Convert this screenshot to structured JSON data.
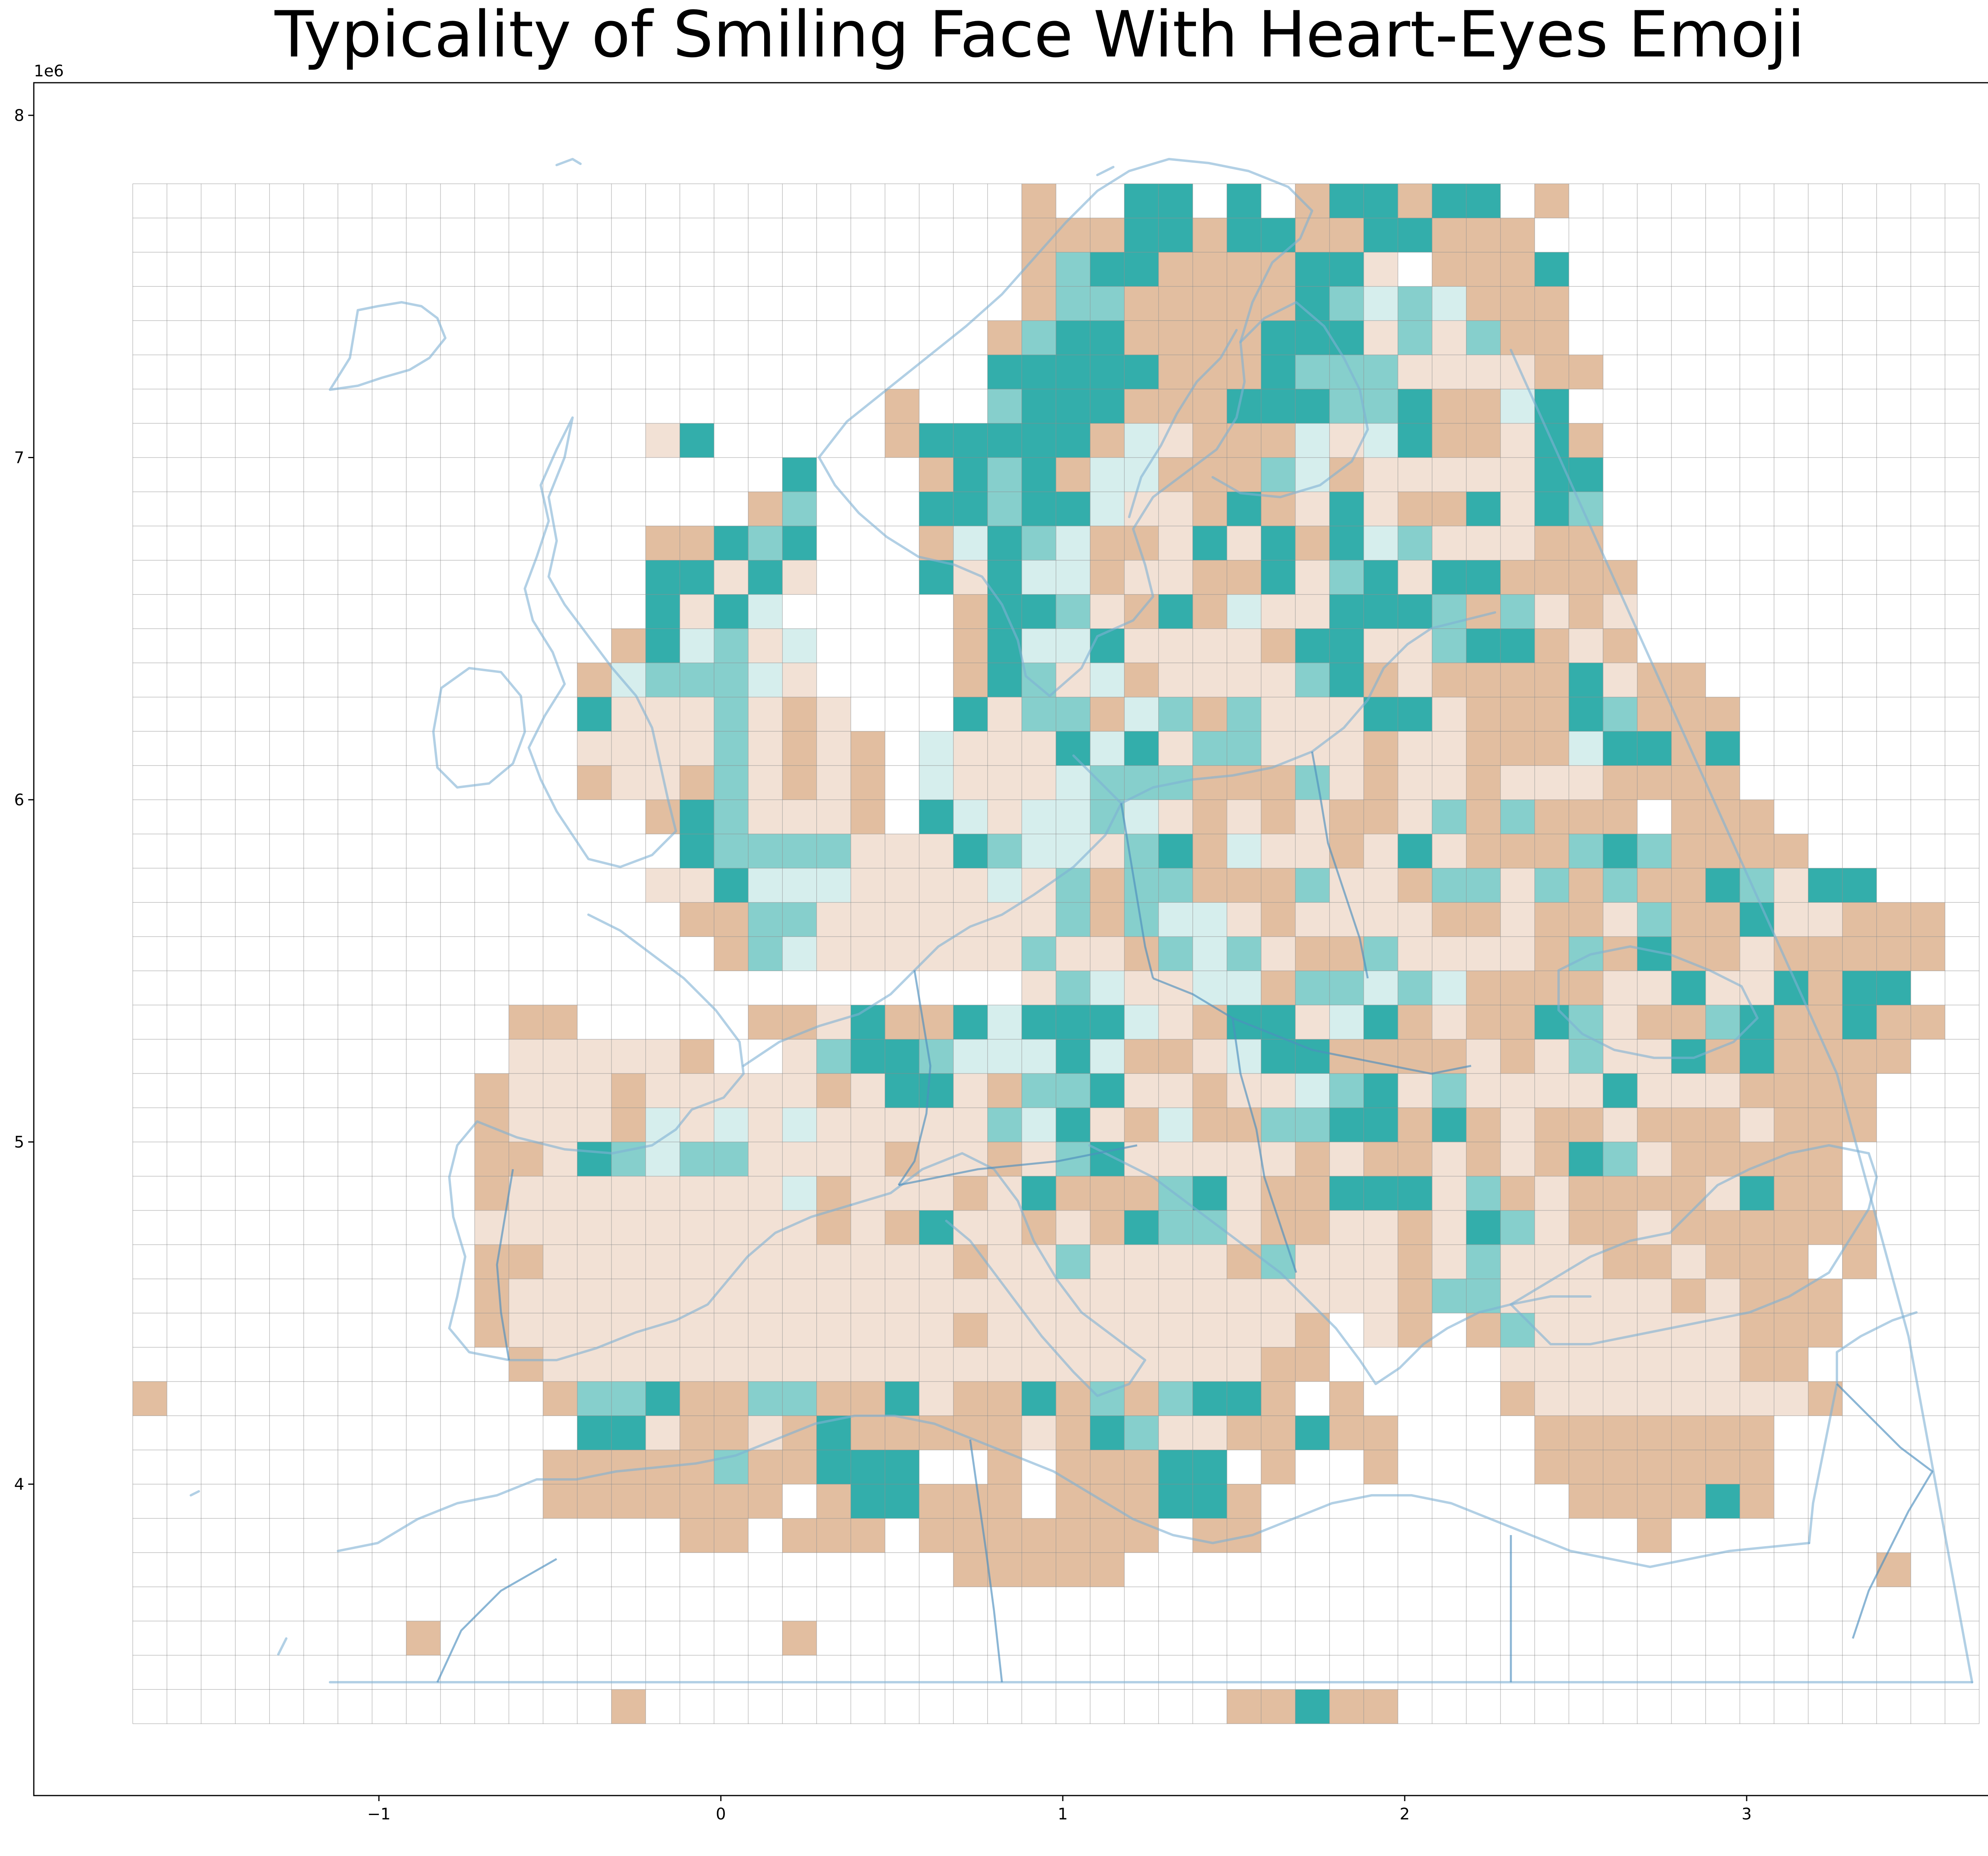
{
  "title": "Typicality of Smiling Face With Heart-Eyes Emoji",
  "axes": {
    "x_offset_label": "1e6",
    "y_offset_label": "1e6",
    "x_ticks": [
      {
        "value": -1,
        "label": "−1"
      },
      {
        "value": 0,
        "label": "0"
      },
      {
        "value": 1,
        "label": "1"
      },
      {
        "value": 2,
        "label": "2"
      },
      {
        "value": 3,
        "label": "3"
      }
    ],
    "y_ticks": [
      {
        "value": 4,
        "label": "4"
      },
      {
        "value": 5,
        "label": "5"
      },
      {
        "value": 6,
        "label": "6"
      },
      {
        "value": 7,
        "label": "7"
      },
      {
        "value": 8,
        "label": "8"
      }
    ]
  },
  "colors": {
    "teal_strong": "#33aeab",
    "teal_mid": "#86cfcc",
    "teal_light": "#d6eeed",
    "tan_strong": "#e2bea0",
    "tan_light": "#f2e1d5",
    "neutral": "#fdfdfd",
    "grid": "#8a8a8a"
  },
  "chart_data": {
    "type": "heatmap",
    "title": "Typicality of Smiling Face With Heart-Eyes Emoji",
    "xlabel": "",
    "ylabel": "",
    "units_note": "coordinates in millions (1e6)",
    "xlim": [
      -1.0,
      3.5
    ],
    "ylim": [
      3.2,
      8.1
    ],
    "grid": {
      "x0": -1.72,
      "y_top": 7.8,
      "cell_size": 0.1,
      "cols": 54,
      "rows": 45
    },
    "scale": "diverging: t = teal (above typical), b = tan (below typical); 1 light, 2 medium, 3 strong; . = no data",
    "cells": [
      "..........................b..tt.t.bttbtt.b............",
      "..........................bbbttbttbbttbbb.............",
      "..........................btttbbbbttb.bbbt............",
      "..........................bttbbbbbtttttbbb............",
      ".........................btttbbbbtttbtbtbb.............",
      ".........................tttttbbbttttbbbbbb............",
      "......................b..ttttbbbttttttbbtt.............",
      "...............bt.....btttttbtbbbbtbttbbbtb............",
      "...................t...btttbttbbbttbbbbbbtt............",
      "..................bt...ttttttbbbtbbtbbbtbtt............",
      "...............bbttt...bttttbbbtbtbtttbbbbb............",
      "...............ttbtb...tbtttbbbbbtbttbttbbbb...........",
      "...............tbtt.....btttbbtbtbbttttbtbbb...........",
      "..............btttbt....bttttbbbbbttbbtttbbb...........",
      ".............btttttb....bttbtbbbbbttbbbbbbtbbb.........",
      ".............tbbbtbbb...tbttbttbtbbbttbbbbttbbb........",
      ".............bbbbtbbbb.tbbbtttbttbbbbbbbbbtttbt........",
      ".............bbbbtbbbb.tbbbttttbbbtbbbbbbbbbbbb........",
      "...............bttbbbb.ttbttttbbbbbbbbtbtbbb.bbb.......",
      "................tttttbbbttttbttbtbbbbtbbbbtttbbbb......",
      "...............bbttttbbbbtbtbttbbbtbbbttbtbtbbttbtt....",
      "................bbttbbbbbbbtbtttbbbbbbbbbbbbtbbtbbbbb..",
      ".................bttbbbbbbtbbbtttbbbtbbbbbtbtbbbbbbbb..",
      "..........................bttbbttbtttttbbbbbbtbbtbtt...",
      "...........bb.....bbbtbbttttttbbttbttbbbbttbbbttbbtbb..",
      "...........bbbbbb..btttttttttbbbtttbbbbbbbtbbtbtbbbb...",
      "..........bbbbbbbbbbbbttbbtttbbbbbtttbtbbbbtbbbbbbb....",
      "..........bbbbbtbtbtbbbbbtttbbtbbttttbtbbbbbbbbbbbb....",
      "..........bbbtttttbbbbbbbbbttbbbbbbbbbbbbbttbbbbbb.....",
      "..........bbbbbbbbbtbbbbbbtbbbttbbbtttbtbbbbbbbtbb.....",
      "..........bbbbbbbbbbbbbtbbbbbtttbbbbbbbttbbbbbbbbbb....",
      "..........bbbbbbbbbbbbbbbbbtbbbbbtbbbbbtbbbbbbbbb.b....",
      "..........bbbbbbbbbbbbbbbbbbbbbbbbbbbbttbbbbbbbbbb.....",
      "..........bbbbbbbbbbbbbbbbbbbbbbbbb.bb.btbbbbbbbbb.....",
      "...........bbbbbbbbbbbbbbbbbbbbbbbb.....bbbbbbbbb......",
      "b...........btttbbttbbtbbbtbtbtttb.b....bbbbbbbbbb.....",
      ".............ttbbbbbtbbbbbbbttbbbbtbb....bbbbbbb.......",
      "............bbbbbtbbttt..b.bbbtt.b..b....bbbbbbb.......",
      "............bbbbbbb.bttbbb.bbbttb.........bbbbtb......",
      "................bb.bbb.bbbbbbb.bb...........b..........",
      "........................bbbbb......................b...",
      ".......................................................",
      "........b..........b...................................",
      ".......................................................",
      "..............b.................bbtbb.................."
    ],
    "intensity": [
      "..........................3..33.3.33.33.3............",
      "..........................3333333333333333.............",
      "..........................323333333322333.............",
      "..........................3223333332121333............",
      ".........................323333333331212333............",
      ".........................3333333332221212333...........",
      "......................3..2333333333223331............",
      "...............23.....33333331133312133323............",
      "...................3...332331133321311122333............",
      "..................32...33233111333232333232............",
      "...............33323...3132133232333121113............",
      "...............33131...3131131133312313333...........",
      "...............313123.....3223331213332322313...........",
      "..............3312212....3113212233321233313...........",
      ".............31222123....32113112123313333323.........",
      ".............32222232...3122312322223313333233........",
      ".............22222131.2111231322222232233313333........",
      ".............32232232.2111112223332232232223........",
      "...............332121.13121121131323322323.333.......",
      "................322221113211123312232323332323......",
      "...............2231112121112322333222322223233322....",
      "................3322221111123211131222332332233322..",
      ".................3211222122113212233222123233332..",
      "..........................2212211322121333312322...",
      "...........33.....3323333133312333213323332233233..",
      "...........22222..2223321113133113333332322223...",
      "..........3222322222323313223223211232222223222....",
      "..........32223121211211121313133223333323323332....",
      "..........3323212222223123123221113233232332233.....",
      "..........3222222221322132333323133333223233332.....",
      "..........22222222223233223133222332232322332333....",
      "..........3322222222222232222222322223222223.2....",
      "..........3222222222222222222222222223222222232.....",
      "..........322222222222223222222222.22.232222222.....",
      "...........3222222222222222222222.....222222222......",
      "3...........3223332233323333232333.3....3222222223.....",
      ".............3323323333333233222333.3....3333333.......",
      "............333332333..3.333333.3..3....3333333.......",
      "............3333333.33333.33333.........333333......",
      "................33.333.3333333.33...........3..........",
      "........................33333......................3...",
      ".......................................................",
      "........3..........3...................................",
      ".......................................................",
      "..............3.................33333.................."
    ]
  }
}
